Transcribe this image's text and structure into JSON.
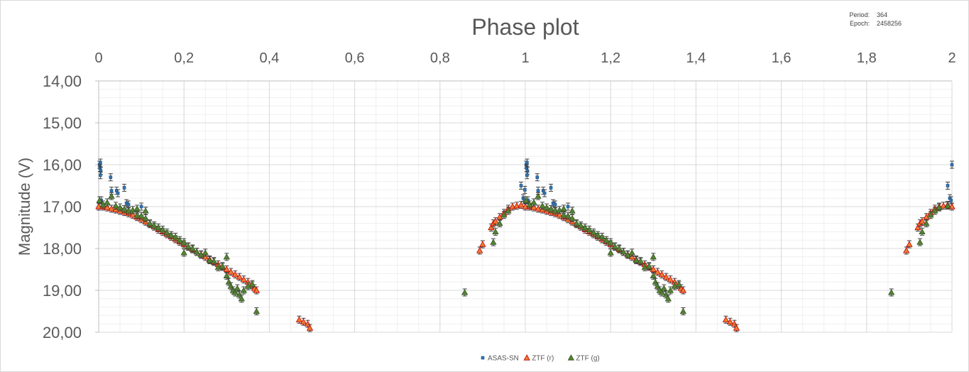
{
  "chart_data": {
    "type": "scatter",
    "title": "Phase plot",
    "ylabel": "Magnitude (V)",
    "xlabel": "",
    "x_axis_position": "top",
    "y_axis_inverted": true,
    "xlim": [
      0,
      2
    ],
    "ylim": [
      14,
      20
    ],
    "x_ticks": [
      "0",
      "0,2",
      "0,4",
      "0,6",
      "0,8",
      "1",
      "1,2",
      "1,4",
      "1,6",
      "1,8",
      "2"
    ],
    "y_ticks": [
      "14,00",
      "15,00",
      "16,00",
      "17,00",
      "18,00",
      "19,00",
      "20,00"
    ],
    "grid": true,
    "legend_position": "bottom",
    "series": [
      {
        "name": "ASAS-SN",
        "marker": "square",
        "color": "#2e75b6",
        "points": [
          [
            0.002,
            16.0
          ],
          [
            0.003,
            16.08
          ],
          [
            0.004,
            15.95
          ],
          [
            0.005,
            16.15
          ],
          [
            0.004,
            16.25
          ],
          [
            0.006,
            16.85
          ],
          [
            0.028,
            16.3
          ],
          [
            0.03,
            16.62
          ],
          [
            0.042,
            16.62
          ],
          [
            0.045,
            16.68
          ],
          [
            0.06,
            16.55
          ],
          [
            0.065,
            16.92
          ],
          [
            0.07,
            16.95
          ],
          [
            0.1,
            17.0
          ],
          [
            0.99,
            16.5
          ],
          [
            0.995,
            16.8
          ],
          [
            0.998,
            16.85
          ],
          [
            0.999,
            16.6
          ],
          [
            1.002,
            16.0
          ],
          [
            1.003,
            16.08
          ],
          [
            1.004,
            15.95
          ],
          [
            1.005,
            16.15
          ],
          [
            1.004,
            16.25
          ],
          [
            1.006,
            16.85
          ],
          [
            1.028,
            16.3
          ],
          [
            1.03,
            16.62
          ],
          [
            1.042,
            16.62
          ],
          [
            1.045,
            16.68
          ],
          [
            1.06,
            16.55
          ],
          [
            1.065,
            16.92
          ],
          [
            1.07,
            16.95
          ],
          [
            1.1,
            17.0
          ],
          [
            1.99,
            16.5
          ],
          [
            1.995,
            16.8
          ],
          [
            1.998,
            16.85
          ],
          [
            2.0,
            16.0
          ]
        ]
      },
      {
        "name": "ZTF (r)",
        "marker": "triangle",
        "color": "#ed7d31",
        "points": [
          [
            0.0,
            17.0
          ],
          [
            0.01,
            17.0
          ],
          [
            0.02,
            17.02
          ],
          [
            0.03,
            17.05
          ],
          [
            0.04,
            17.07
          ],
          [
            0.05,
            17.1
          ],
          [
            0.06,
            17.13
          ],
          [
            0.07,
            17.16
          ],
          [
            0.08,
            17.2
          ],
          [
            0.09,
            17.25
          ],
          [
            0.1,
            17.3
          ],
          [
            0.11,
            17.36
          ],
          [
            0.12,
            17.42
          ],
          [
            0.13,
            17.48
          ],
          [
            0.14,
            17.55
          ],
          [
            0.15,
            17.6
          ],
          [
            0.16,
            17.66
          ],
          [
            0.17,
            17.72
          ],
          [
            0.18,
            17.78
          ],
          [
            0.19,
            17.84
          ],
          [
            0.2,
            17.9
          ],
          [
            0.21,
            17.96
          ],
          [
            0.22,
            18.02
          ],
          [
            0.23,
            18.08
          ],
          [
            0.24,
            18.14
          ],
          [
            0.25,
            18.2
          ],
          [
            0.26,
            18.26
          ],
          [
            0.27,
            18.32
          ],
          [
            0.28,
            18.38
          ],
          [
            0.29,
            18.44
          ],
          [
            0.3,
            18.5
          ],
          [
            0.31,
            18.56
          ],
          [
            0.32,
            18.62
          ],
          [
            0.33,
            18.68
          ],
          [
            0.34,
            18.74
          ],
          [
            0.35,
            18.8
          ],
          [
            0.36,
            18.88
          ],
          [
            0.365,
            18.95
          ],
          [
            0.37,
            19.0
          ],
          [
            0.47,
            19.7
          ],
          [
            0.48,
            19.75
          ],
          [
            0.49,
            19.8
          ],
          [
            0.495,
            19.9
          ],
          [
            0.893,
            18.05
          ],
          [
            0.9,
            17.9
          ],
          [
            0.92,
            17.5
          ],
          [
            0.925,
            17.4
          ],
          [
            0.93,
            17.35
          ],
          [
            0.94,
            17.25
          ],
          [
            0.95,
            17.15
          ],
          [
            0.96,
            17.05
          ],
          [
            0.97,
            17.0
          ],
          [
            0.98,
            16.98
          ],
          [
            0.99,
            16.96
          ],
          [
            1.0,
            17.0
          ],
          [
            1.01,
            17.0
          ],
          [
            1.02,
            17.02
          ],
          [
            1.03,
            17.05
          ],
          [
            1.04,
            17.07
          ],
          [
            1.05,
            17.1
          ],
          [
            1.06,
            17.13
          ],
          [
            1.07,
            17.16
          ],
          [
            1.08,
            17.2
          ],
          [
            1.09,
            17.25
          ],
          [
            1.1,
            17.3
          ],
          [
            1.11,
            17.36
          ],
          [
            1.12,
            17.42
          ],
          [
            1.13,
            17.48
          ],
          [
            1.14,
            17.55
          ],
          [
            1.15,
            17.6
          ],
          [
            1.16,
            17.66
          ],
          [
            1.17,
            17.72
          ],
          [
            1.18,
            17.78
          ],
          [
            1.19,
            17.84
          ],
          [
            1.2,
            17.9
          ],
          [
            1.21,
            17.96
          ],
          [
            1.22,
            18.02
          ],
          [
            1.23,
            18.08
          ],
          [
            1.24,
            18.14
          ],
          [
            1.25,
            18.2
          ],
          [
            1.26,
            18.26
          ],
          [
            1.27,
            18.32
          ],
          [
            1.28,
            18.38
          ],
          [
            1.29,
            18.44
          ],
          [
            1.3,
            18.5
          ],
          [
            1.31,
            18.56
          ],
          [
            1.32,
            18.62
          ],
          [
            1.33,
            18.68
          ],
          [
            1.34,
            18.74
          ],
          [
            1.35,
            18.8
          ],
          [
            1.36,
            18.88
          ],
          [
            1.365,
            18.95
          ],
          [
            1.37,
            19.0
          ],
          [
            1.47,
            19.7
          ],
          [
            1.48,
            19.75
          ],
          [
            1.49,
            19.8
          ],
          [
            1.495,
            19.9
          ],
          [
            1.893,
            18.05
          ],
          [
            1.9,
            17.9
          ],
          [
            1.92,
            17.5
          ],
          [
            1.925,
            17.4
          ],
          [
            1.93,
            17.35
          ],
          [
            1.94,
            17.25
          ],
          [
            1.95,
            17.15
          ],
          [
            1.96,
            17.05
          ],
          [
            1.97,
            17.0
          ],
          [
            1.98,
            16.98
          ],
          [
            1.99,
            16.96
          ],
          [
            2.0,
            17.0
          ]
        ]
      },
      {
        "name": "ZTF (g)",
        "marker": "triangle",
        "color": "#548235",
        "points": [
          [
            0.002,
            16.85
          ],
          [
            0.01,
            16.95
          ],
          [
            0.02,
            16.9
          ],
          [
            0.03,
            16.75
          ],
          [
            0.04,
            16.98
          ],
          [
            0.05,
            17.02
          ],
          [
            0.06,
            17.06
          ],
          [
            0.07,
            17.1
          ],
          [
            0.08,
            17.08
          ],
          [
            0.09,
            17.2
          ],
          [
            0.1,
            17.22
          ],
          [
            0.11,
            17.28
          ],
          [
            0.12,
            17.4
          ],
          [
            0.13,
            17.45
          ],
          [
            0.14,
            17.5
          ],
          [
            0.15,
            17.55
          ],
          [
            0.16,
            17.62
          ],
          [
            0.17,
            17.68
          ],
          [
            0.18,
            17.72
          ],
          [
            0.19,
            17.8
          ],
          [
            0.2,
            17.85
          ],
          [
            0.21,
            17.95
          ],
          [
            0.22,
            18.0
          ],
          [
            0.23,
            18.08
          ],
          [
            0.24,
            18.15
          ],
          [
            0.25,
            18.1
          ],
          [
            0.26,
            18.28
          ],
          [
            0.27,
            18.3
          ],
          [
            0.28,
            18.45
          ],
          [
            0.29,
            18.42
          ],
          [
            0.3,
            18.65
          ],
          [
            0.305,
            18.8
          ],
          [
            0.31,
            18.9
          ],
          [
            0.315,
            19.0
          ],
          [
            0.32,
            19.05
          ],
          [
            0.325,
            18.95
          ],
          [
            0.33,
            19.1
          ],
          [
            0.335,
            19.2
          ],
          [
            0.34,
            19.0
          ],
          [
            0.35,
            18.9
          ],
          [
            0.36,
            18.85
          ],
          [
            0.37,
            19.5
          ],
          [
            0.3,
            18.2
          ],
          [
            0.2,
            18.1
          ],
          [
            0.09,
            17.05
          ],
          [
            0.11,
            17.1
          ],
          [
            0.858,
            19.05
          ],
          [
            0.925,
            17.85
          ],
          [
            0.93,
            17.6
          ],
          [
            0.94,
            17.4
          ],
          [
            0.95,
            17.2
          ],
          [
            0.96,
            17.1
          ],
          [
            1.002,
            16.85
          ],
          [
            1.01,
            16.95
          ],
          [
            1.02,
            16.9
          ],
          [
            1.03,
            16.75
          ],
          [
            1.04,
            16.98
          ],
          [
            1.05,
            17.02
          ],
          [
            1.06,
            17.06
          ],
          [
            1.07,
            17.1
          ],
          [
            1.08,
            17.08
          ],
          [
            1.09,
            17.2
          ],
          [
            1.1,
            17.22
          ],
          [
            1.11,
            17.28
          ],
          [
            1.12,
            17.4
          ],
          [
            1.13,
            17.45
          ],
          [
            1.14,
            17.5
          ],
          [
            1.15,
            17.55
          ],
          [
            1.16,
            17.62
          ],
          [
            1.17,
            17.68
          ],
          [
            1.18,
            17.72
          ],
          [
            1.19,
            17.8
          ],
          [
            1.2,
            17.85
          ],
          [
            1.21,
            17.95
          ],
          [
            1.22,
            18.0
          ],
          [
            1.23,
            18.08
          ],
          [
            1.24,
            18.15
          ],
          [
            1.25,
            18.1
          ],
          [
            1.26,
            18.28
          ],
          [
            1.27,
            18.3
          ],
          [
            1.28,
            18.45
          ],
          [
            1.29,
            18.42
          ],
          [
            1.3,
            18.65
          ],
          [
            1.305,
            18.8
          ],
          [
            1.31,
            18.9
          ],
          [
            1.315,
            19.0
          ],
          [
            1.32,
            19.05
          ],
          [
            1.325,
            18.95
          ],
          [
            1.33,
            19.1
          ],
          [
            1.335,
            19.2
          ],
          [
            1.34,
            19.0
          ],
          [
            1.35,
            18.9
          ],
          [
            1.36,
            18.85
          ],
          [
            1.37,
            19.5
          ],
          [
            1.3,
            18.2
          ],
          [
            1.2,
            18.1
          ],
          [
            1.09,
            17.05
          ],
          [
            1.11,
            17.1
          ],
          [
            1.858,
            19.05
          ],
          [
            1.925,
            17.85
          ],
          [
            1.93,
            17.6
          ],
          [
            1.94,
            17.4
          ],
          [
            1.95,
            17.2
          ],
          [
            1.96,
            17.1
          ],
          [
            1.97,
            17.02
          ],
          [
            1.99,
            16.98
          ]
        ]
      }
    ]
  },
  "info_box": {
    "period_label": "Period:",
    "period_value": "364",
    "epoch_label": "Epoch:",
    "epoch_value": "2458256"
  }
}
